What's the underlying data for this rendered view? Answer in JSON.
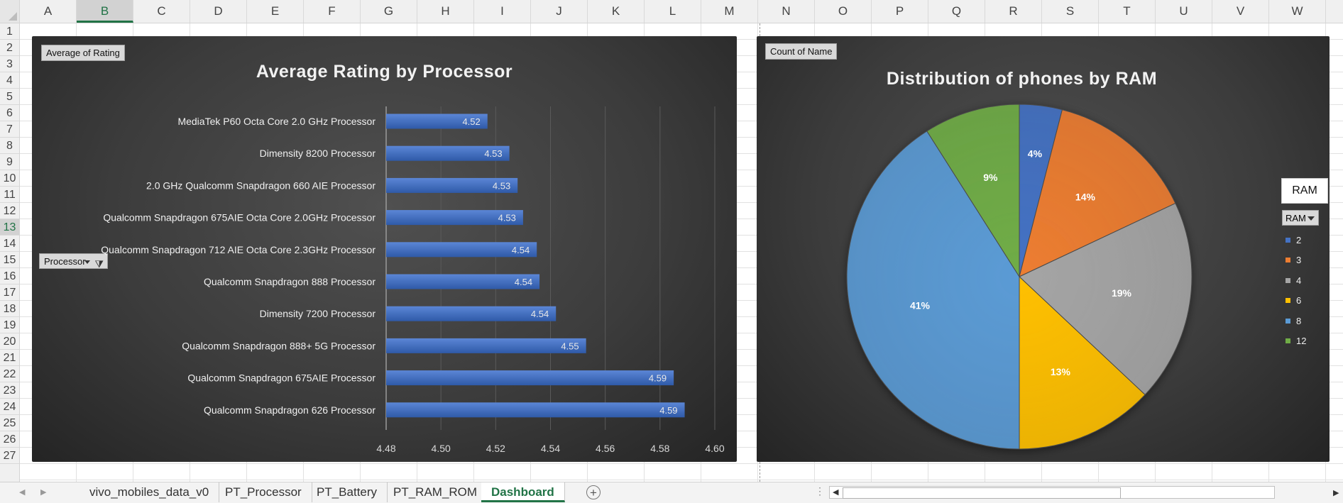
{
  "sheet": {
    "columns": [
      "A",
      "B",
      "C",
      "D",
      "E",
      "F",
      "G",
      "H",
      "I",
      "J",
      "K",
      "L",
      "M",
      "N",
      "O",
      "P",
      "Q",
      "R",
      "S",
      "T",
      "U",
      "V",
      "W"
    ],
    "active_column": "B",
    "rows": [
      "1",
      "2",
      "3",
      "4",
      "5",
      "6",
      "7",
      "8",
      "9",
      "10",
      "11",
      "12",
      "13",
      "14",
      "15",
      "16",
      "17",
      "18",
      "19",
      "20",
      "21",
      "22",
      "23",
      "24",
      "25",
      "26",
      "27"
    ],
    "active_row": "13"
  },
  "bar_chart": {
    "field_button": "Average of Rating",
    "filter_button": "Processor",
    "chart_data": {
      "type": "bar",
      "title": "Average Rating by Processor",
      "categories": [
        "MediaTek P60 Octa Core 2.0 GHz Processor",
        "Dimensity 8200 Processor",
        "2.0 GHz Qualcomm Snapdragon 660 AIE Processor",
        "Qualcomm Snapdragon 675AIE Octa Core 2.0GHz Processor",
        "Qualcomm Snapdragon 712 AIE Octa Core 2.3GHz Processor",
        "Qualcomm Snapdragon 888 Processor",
        "Dimensity 7200 Processor",
        "Qualcomm Snapdragon 888+ 5G Processor",
        "Qualcomm Snapdragon 675AIE Processor",
        "Qualcomm Snapdragon 626 Processor"
      ],
      "values": [
        4.517,
        4.525,
        4.528,
        4.53,
        4.535,
        4.536,
        4.542,
        4.553,
        4.585,
        4.589
      ],
      "data_labels": [
        "4.52",
        "4.53",
        "4.53",
        "4.53",
        "4.54",
        "4.54",
        "4.54",
        "4.55",
        "4.59",
        "4.59"
      ],
      "xlim": [
        4.48,
        4.6
      ],
      "ticks": [
        "4.48",
        "4.50",
        "4.52",
        "4.54",
        "4.56",
        "4.58",
        "4.60"
      ],
      "tick_values": [
        4.48,
        4.5,
        4.52,
        4.54,
        4.56,
        4.58,
        4.6
      ],
      "grid": true,
      "bar_color": "#4472c4"
    }
  },
  "pie_chart": {
    "field_button": "Count of Name",
    "legend_title": "RAM",
    "legend_filter": "RAM",
    "chart_data": {
      "type": "pie",
      "title": "Distribution of phones by RAM",
      "categories": [
        "2",
        "3",
        "4",
        "6",
        "8",
        "12"
      ],
      "values": [
        4,
        14,
        19,
        13,
        41,
        9
      ],
      "labels": [
        "4%",
        "14%",
        "19%",
        "13%",
        "41%",
        "9%"
      ],
      "colors": [
        "#4472c4",
        "#ed7d31",
        "#a5a5a5",
        "#ffc000",
        "#5b9bd5",
        "#70ad47"
      ],
      "legend_position": "right"
    }
  },
  "tabs": {
    "items": [
      "vivo_mobiles_data_v0",
      "PT_Processor",
      "PT_Battery",
      "PT_RAM_ROM",
      "Dashboard"
    ],
    "active": "Dashboard",
    "add_label": "+"
  }
}
